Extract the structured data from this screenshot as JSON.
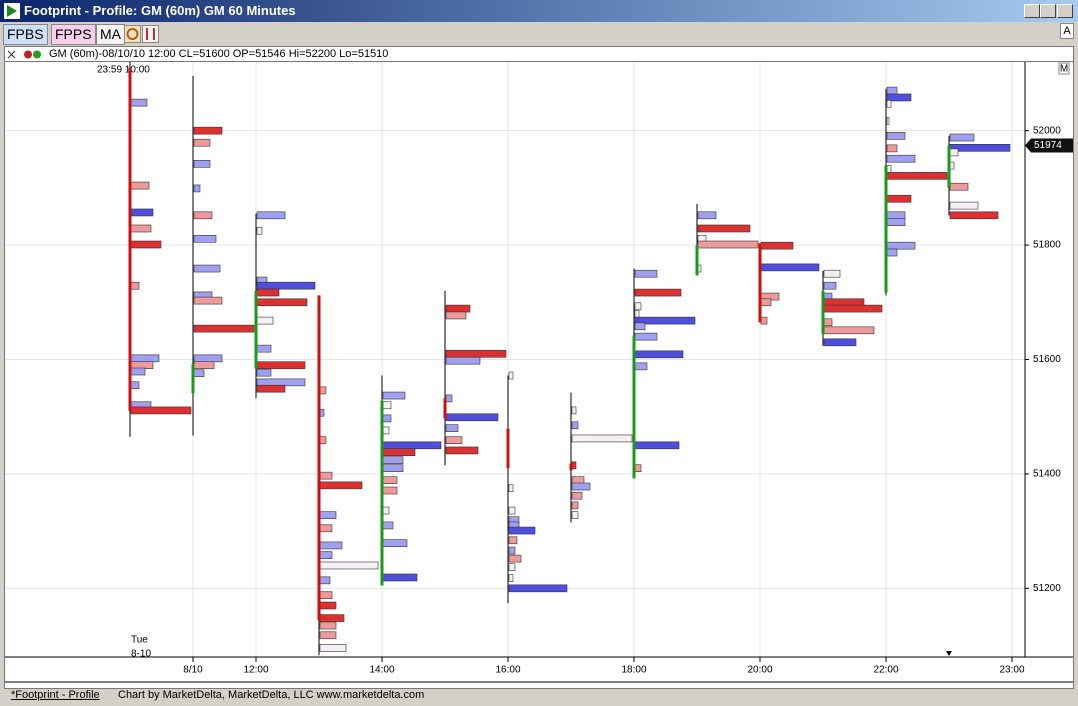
{
  "window": {
    "title": "Footprint - Profile: GM (60m) GM 60 Minutes",
    "corner_label": "A"
  },
  "toolbar": {
    "buttons": [
      "FPBS",
      "FPPS",
      "MA"
    ]
  },
  "info_line": "GM (60m)-08/10/10 12:00 CL=51600 OP=51546 Hi=52200 Lo=51510",
  "footer": {
    "link": "*Footprint - Profile",
    "credit": "Chart by MarketDelta, MarketDelta, LLC www.marketdelta.com"
  },
  "chart_data": {
    "type": "footprint",
    "top_note": "23:59  10:00",
    "bottom_note": [
      "Tue",
      "8-10"
    ],
    "corner_label": "M",
    "categories": [
      null,
      "8/10",
      "12:00",
      null,
      "14:00",
      null,
      "16:00",
      null,
      "18:00",
      null,
      "20:00",
      null,
      "22:00",
      null,
      "23:00"
    ],
    "ylim": [
      51080,
      52120
    ],
    "yticks": [
      51200,
      51400,
      51600,
      51800,
      52000
    ],
    "grid": true,
    "up_color": "#1a9a1a",
    "down_color": "#cc1111",
    "level_colors": {
      "b": "#a0a0f0",
      "B": "#4f4fdc",
      "r": "#ee9a9a",
      "R": "#dd3030",
      "w": "#f6f0f6"
    },
    "last_price_color": "#111111",
    "candles": [
      {
        "open": 52110,
        "high": 52120,
        "low": 51465,
        "close": 51510,
        "levels": [
          [
            52049,
            16,
            "b"
          ],
          [
            51904,
            18,
            "r"
          ],
          [
            51857,
            22,
            "B"
          ],
          [
            51829,
            20,
            "r"
          ],
          [
            51801,
            30,
            "R"
          ],
          [
            51729,
            8,
            "r"
          ],
          [
            51602,
            28,
            "b"
          ],
          [
            51590,
            22,
            "r"
          ],
          [
            51579,
            14,
            "b"
          ],
          [
            51555,
            8,
            "b"
          ],
          [
            51520,
            20,
            "b"
          ],
          [
            51511,
            60,
            "R"
          ]
        ]
      },
      {
        "open": 51541,
        "high": 52096,
        "low": 51467,
        "close": 51593,
        "levels": [
          [
            52000,
            28,
            "R"
          ],
          [
            51979,
            16,
            "r"
          ],
          [
            51942,
            16,
            "b"
          ],
          [
            51899,
            6,
            "b"
          ],
          [
            51852,
            18,
            "r"
          ],
          [
            51811,
            22,
            "b"
          ],
          [
            51759,
            26,
            "b"
          ],
          [
            51712,
            18,
            "b"
          ],
          [
            51703,
            28,
            "r"
          ],
          [
            51654,
            60,
            "R"
          ],
          [
            51602,
            28,
            "b"
          ],
          [
            51590,
            20,
            "r"
          ],
          [
            51576,
            10,
            "b"
          ]
        ]
      },
      {
        "open": 51584,
        "high": 51855,
        "low": 51532,
        "close": 51720,
        "levels": [
          [
            51852,
            28,
            "b"
          ],
          [
            51825,
            5,
            "w"
          ],
          [
            51738,
            10,
            "b"
          ],
          [
            51729,
            58,
            "B"
          ],
          [
            51717,
            22,
            "R"
          ],
          [
            51700,
            50,
            "R"
          ],
          [
            51668,
            16,
            "w"
          ],
          [
            51619,
            14,
            "b"
          ],
          [
            51590,
            48,
            "R"
          ],
          [
            51577,
            14,
            "b"
          ],
          [
            51560,
            48,
            "b"
          ],
          [
            51549,
            28,
            "R"
          ]
        ]
      },
      {
        "open": 51712,
        "high": 51712,
        "low": 51083,
        "close": 51144,
        "levels": [
          [
            51546,
            6,
            "r"
          ],
          [
            51507,
            4,
            "b"
          ],
          [
            51459,
            6,
            "r"
          ],
          [
            51397,
            12,
            "r"
          ],
          [
            51380,
            42,
            "R"
          ],
          [
            51328,
            16,
            "b"
          ],
          [
            51305,
            12,
            "r"
          ],
          [
            51275,
            22,
            "b"
          ],
          [
            51258,
            12,
            "b"
          ],
          [
            51240,
            58,
            "w"
          ],
          [
            51214,
            10,
            "b"
          ],
          [
            51188,
            12,
            "r"
          ],
          [
            51170,
            16,
            "R"
          ],
          [
            51148,
            24,
            "R"
          ],
          [
            51135,
            16,
            "r"
          ],
          [
            51118,
            16,
            "r"
          ],
          [
            51096,
            26,
            "w"
          ]
        ]
      },
      {
        "open": 51205,
        "high": 51572,
        "low": 51205,
        "close": 51528,
        "levels": [
          [
            51537,
            22,
            "b"
          ],
          [
            51520,
            8,
            "w"
          ],
          [
            51497,
            8,
            "b"
          ],
          [
            51476,
            6,
            "w"
          ],
          [
            51450,
            58,
            "B"
          ],
          [
            51438,
            32,
            "R"
          ],
          [
            51424,
            20,
            "b"
          ],
          [
            51410,
            20,
            "b"
          ],
          [
            51389,
            14,
            "r"
          ],
          [
            51371,
            14,
            "r"
          ],
          [
            51336,
            6,
            "w"
          ],
          [
            51310,
            10,
            "b"
          ],
          [
            51279,
            24,
            "b"
          ],
          [
            51219,
            34,
            "B"
          ]
        ]
      },
      {
        "open": 51532,
        "high": 51720,
        "low": 51415,
        "close": 51497,
        "levels": [
          [
            51689,
            24,
            "R"
          ],
          [
            51677,
            20,
            "r"
          ],
          [
            51610,
            60,
            "R"
          ],
          [
            51598,
            34,
            "b"
          ],
          [
            51532,
            6,
            "b"
          ],
          [
            51499,
            52,
            "B"
          ],
          [
            51480,
            12,
            "b"
          ],
          [
            51459,
            16,
            "r"
          ],
          [
            51441,
            32,
            "R"
          ]
        ]
      },
      {
        "open": 51479,
        "high": 51572,
        "low": 51174,
        "close": 51410,
        "levels": [
          [
            51572,
            4,
            "w"
          ],
          [
            51375,
            4,
            "w"
          ],
          [
            51336,
            6,
            "w"
          ],
          [
            51319,
            10,
            "b"
          ],
          [
            51310,
            10,
            "b"
          ],
          [
            51301,
            26,
            "B"
          ],
          [
            51284,
            8,
            "r"
          ],
          [
            51266,
            6,
            "b"
          ],
          [
            51252,
            12,
            "r"
          ],
          [
            51237,
            6,
            "w"
          ],
          [
            51218,
            4,
            "w"
          ],
          [
            51200,
            58,
            "B"
          ]
        ]
      },
      {
        "open": 51418,
        "high": 51542,
        "low": 51315,
        "close": 51406,
        "levels": [
          [
            51511,
            4,
            "w"
          ],
          [
            51485,
            6,
            "b"
          ],
          [
            51462,
            60,
            "w"
          ],
          [
            51415,
            4,
            "R"
          ],
          [
            51389,
            12,
            "r"
          ],
          [
            51378,
            18,
            "b"
          ],
          [
            51362,
            10,
            "r"
          ],
          [
            51345,
            6,
            "r"
          ],
          [
            51328,
            6,
            "w"
          ]
        ]
      },
      {
        "open": 51392,
        "high": 51759,
        "low": 51392,
        "close": 51642,
        "levels": [
          [
            51750,
            22,
            "b"
          ],
          [
            51717,
            46,
            "R"
          ],
          [
            51693,
            6,
            "w"
          ],
          [
            51680,
            4,
            "w"
          ],
          [
            51668,
            60,
            "B"
          ],
          [
            51658,
            10,
            "b"
          ],
          [
            51640,
            22,
            "b"
          ],
          [
            51609,
            48,
            "B"
          ],
          [
            51588,
            12,
            "b"
          ],
          [
            51450,
            44,
            "B"
          ],
          [
            51410,
            6,
            "r"
          ]
        ]
      },
      {
        "open": 51747,
        "high": 51872,
        "low": 51747,
        "close": 51800,
        "levels": [
          [
            51852,
            18,
            "b"
          ],
          [
            51829,
            52,
            "R"
          ],
          [
            51811,
            8,
            "w"
          ],
          [
            51801,
            60,
            "r"
          ],
          [
            51759,
            3,
            "w"
          ]
        ]
      },
      {
        "open": 51803,
        "high": 51803,
        "low": 51665,
        "close": 51665,
        "levels": [
          [
            51799,
            32,
            "R"
          ],
          [
            51761,
            58,
            "B"
          ],
          [
            51710,
            18,
            "r"
          ],
          [
            51700,
            10,
            "r"
          ],
          [
            51668,
            6,
            "r"
          ]
        ]
      },
      {
        "open": 51645,
        "high": 51755,
        "low": 51624,
        "close": 51720,
        "levels": [
          [
            51750,
            16,
            "w"
          ],
          [
            51729,
            12,
            "b"
          ],
          [
            51710,
            8,
            "b"
          ],
          [
            51700,
            40,
            "R"
          ],
          [
            51689,
            58,
            "R"
          ],
          [
            51665,
            8,
            "r"
          ],
          [
            51651,
            50,
            "r"
          ],
          [
            51630,
            32,
            "B"
          ]
        ]
      },
      {
        "open": 51717,
        "high": 52073,
        "low": 51712,
        "close": 51939,
        "levels": [
          [
            52070,
            10,
            "b"
          ],
          [
            52058,
            24,
            "B"
          ],
          [
            52047,
            4,
            "w"
          ],
          [
            52017,
            2,
            "w"
          ],
          [
            51991,
            18,
            "b"
          ],
          [
            51969,
            10,
            "r"
          ],
          [
            51951,
            28,
            "b"
          ],
          [
            51933,
            4,
            "w"
          ],
          [
            51921,
            60,
            "R"
          ],
          [
            51881,
            24,
            "R"
          ],
          [
            51852,
            18,
            "b"
          ],
          [
            51840,
            18,
            "b"
          ],
          [
            51799,
            28,
            "b"
          ],
          [
            51787,
            10,
            "b"
          ]
        ]
      },
      {
        "open": 51900,
        "high": 51991,
        "low": 51852,
        "close": 51974,
        "levels": [
          [
            51988,
            24,
            "b"
          ],
          [
            51970,
            60,
            "B"
          ],
          [
            51962,
            8,
            "w"
          ],
          [
            51939,
            4,
            "w"
          ],
          [
            51902,
            18,
            "r"
          ],
          [
            51869,
            28,
            "w"
          ],
          [
            51852,
            48,
            "R"
          ]
        ]
      }
    ]
  }
}
